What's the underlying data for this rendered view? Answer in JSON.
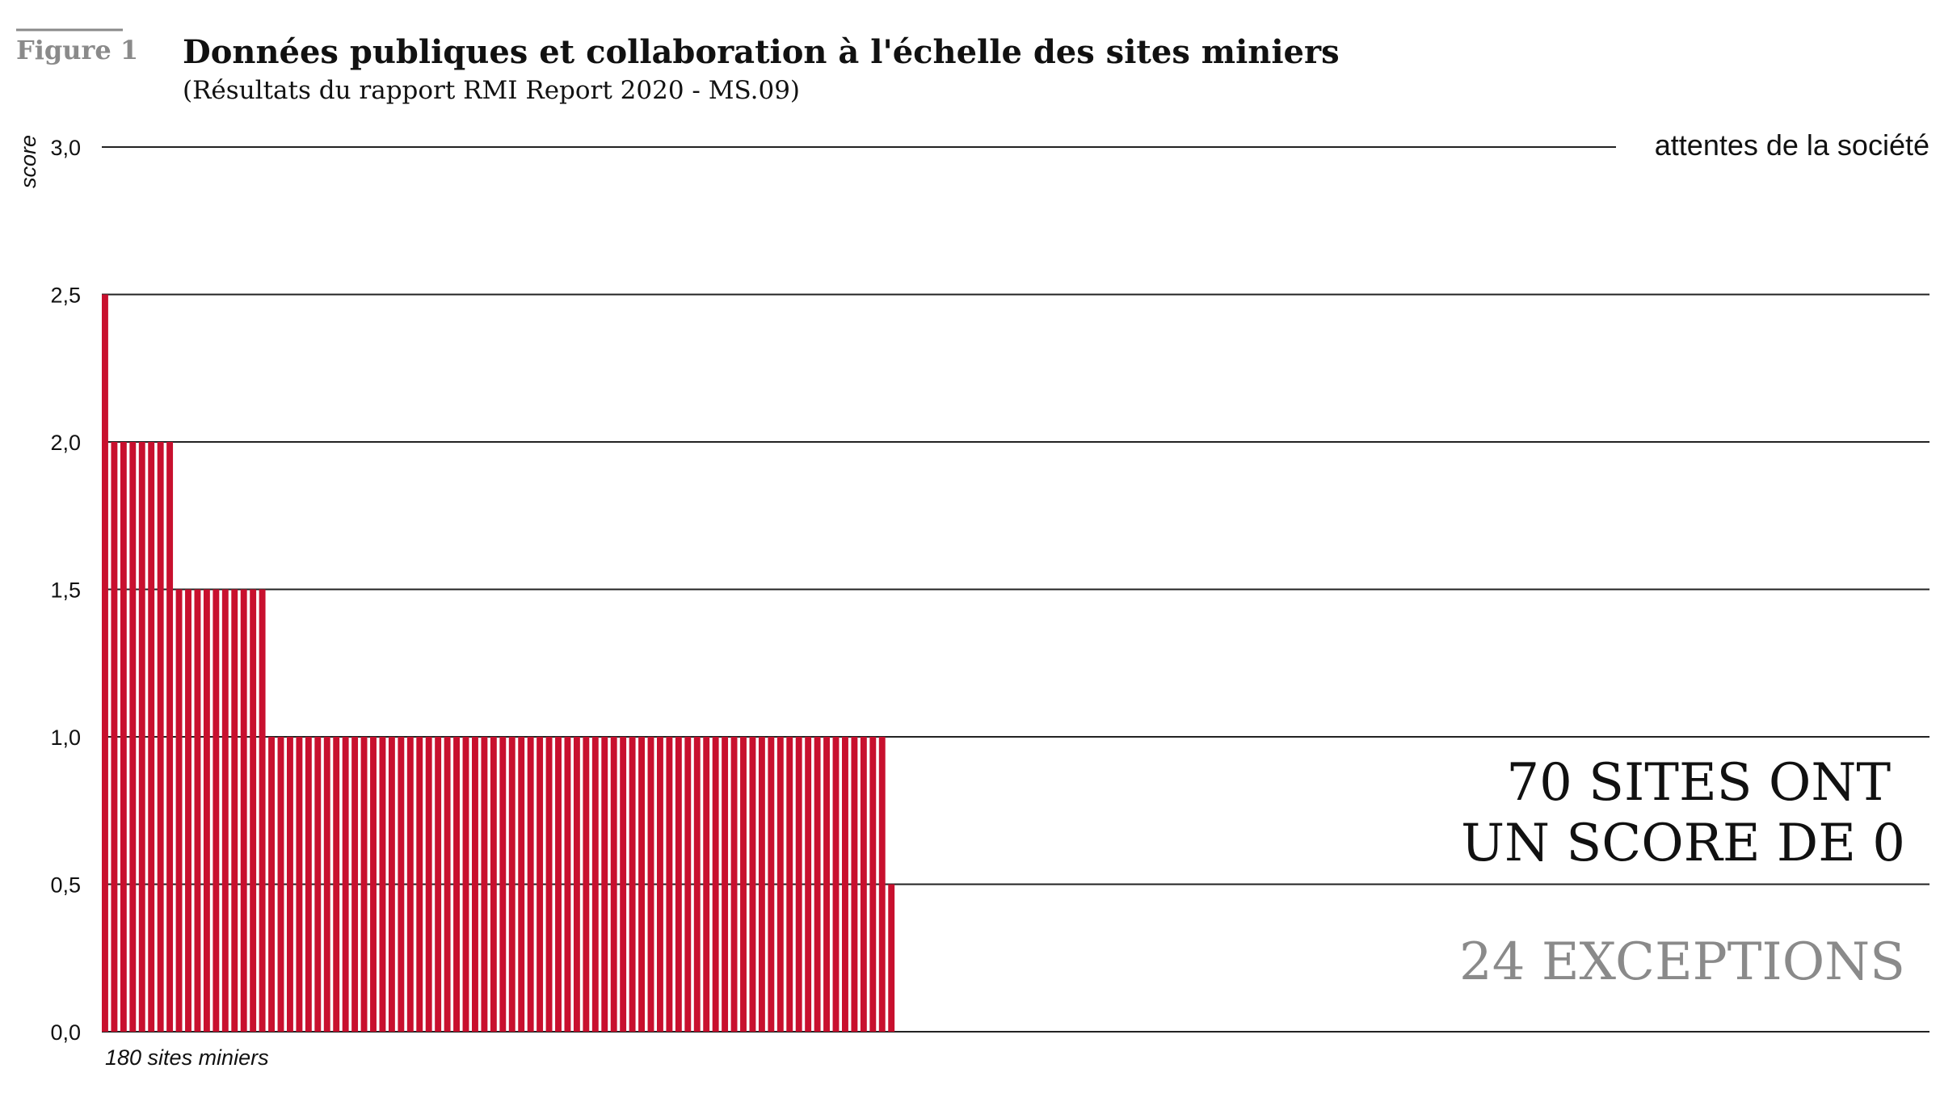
{
  "figure_label": "Figure 1",
  "chart_data": {
    "type": "bar",
    "title": "Données publiques et collaboration à l'échelle des sites miniers",
    "subtitle": "(Résultats du rapport RMI Report 2020 - MS.09)",
    "ylabel": "score",
    "xlabel": "180 sites miniers",
    "ylim": [
      0,
      3
    ],
    "yticks": [
      "0,0",
      "0,5",
      "1,0",
      "1,5",
      "2,0",
      "2,5",
      "3,0"
    ],
    "grid": true,
    "reference_line": {
      "value": 3.0,
      "label": "attentes de la société"
    },
    "series": [
      {
        "value": 2.5,
        "count": 1
      },
      {
        "value": 2.0,
        "count": 7
      },
      {
        "value": 1.5,
        "count": 10
      },
      {
        "value": 1.0,
        "count": 67
      },
      {
        "value": 0.5,
        "count": 1
      },
      {
        "value": 0.0,
        "count": 94
      }
    ],
    "bar_color": "#c8102e",
    "annotations": {
      "line1": "70 SITES ONT",
      "line2": "UN SCORE DE 0",
      "exceptions": "24 EXCEPTIONS"
    }
  }
}
